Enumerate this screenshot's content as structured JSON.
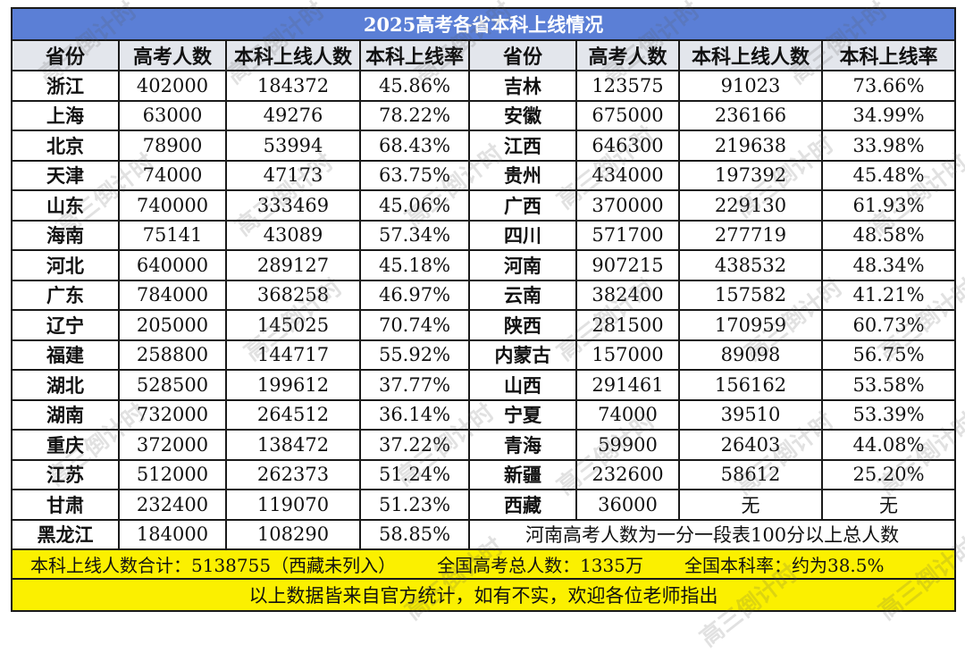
{
  "title": "2025高考各省本科上线情况",
  "headers": [
    "省份",
    "高考人数",
    "本科上线人数",
    "本科上线率",
    "省份",
    "高考人数",
    "本科上线人数",
    "本科上线率"
  ],
  "rows": [
    {
      "left": [
        "浙江",
        "402000",
        "184372",
        "45.86%"
      ],
      "right": [
        "吉林",
        "123575",
        "91023",
        "73.66%"
      ]
    },
    {
      "left": [
        "上海",
        "63000",
        "49276",
        "78.22%"
      ],
      "right": [
        "安徽",
        "675000",
        "236166",
        "34.99%"
      ]
    },
    {
      "left": [
        "北京",
        "78900",
        "53994",
        "68.43%"
      ],
      "right": [
        "江西",
        "646300",
        "219638",
        "33.98%"
      ]
    },
    {
      "left": [
        "天津",
        "74000",
        "47173",
        "63.75%"
      ],
      "right": [
        "贵州",
        "434000",
        "197392",
        "45.48%"
      ]
    },
    {
      "left": [
        "山东",
        "740000",
        "333469",
        "45.06%"
      ],
      "right": [
        "广西",
        "370000",
        "229130",
        "61.93%"
      ]
    },
    {
      "left": [
        "海南",
        "75141",
        "43089",
        "57.34%"
      ],
      "right": [
        "四川",
        "571700",
        "277719",
        "48.58%"
      ]
    },
    {
      "left": [
        "河北",
        "640000",
        "289127",
        "45.18%"
      ],
      "right": [
        "河南",
        "907215",
        "438532",
        "48.34%"
      ]
    },
    {
      "left": [
        "广东",
        "784000",
        "368258",
        "46.97%"
      ],
      "right": [
        "云南",
        "382400",
        "157582",
        "41.21%"
      ]
    },
    {
      "left": [
        "辽宁",
        "205000",
        "145025",
        "70.74%"
      ],
      "right": [
        "陕西",
        "281500",
        "170959",
        "60.73%"
      ]
    },
    {
      "left": [
        "福建",
        "258800",
        "144717",
        "55.92%"
      ],
      "right": [
        "内蒙古",
        "157000",
        "89098",
        "56.75%"
      ]
    },
    {
      "left": [
        "湖北",
        "528500",
        "199612",
        "37.77%"
      ],
      "right": [
        "山西",
        "291461",
        "156162",
        "53.58%"
      ]
    },
    {
      "left": [
        "湖南",
        "732000",
        "264512",
        "36.14%"
      ],
      "right": [
        "宁夏",
        "74000",
        "39510",
        "53.39%"
      ]
    },
    {
      "left": [
        "重庆",
        "372000",
        "138472",
        "37.22%"
      ],
      "right": [
        "青海",
        "59900",
        "26403",
        "44.08%"
      ]
    },
    {
      "left": [
        "江苏",
        "512000",
        "262373",
        "51.24%"
      ],
      "right": [
        "新疆",
        "232600",
        "58612",
        "25.20%"
      ]
    },
    {
      "left": [
        "甘肃",
        "232400",
        "119070",
        "51.23%"
      ],
      "right": [
        "西藏",
        "36000",
        "无",
        "无"
      ]
    }
  ],
  "last_row": {
    "left": [
      "黑龙江",
      "184000",
      "108290",
      "58.85%"
    ],
    "note": "河南高考人数为一分一段表100分以上总人数"
  },
  "footer": {
    "total_admitted": "本科上线人数合计：5138755（西藏未列入）",
    "total_examinees": "全国高考总人数：1335万",
    "national_rate": "全国本科率：约为38.5%",
    "disclaimer": "以上数据皆来自官方统计，如有不实，欢迎各位老师指出"
  },
  "watermark": "高三倒计时",
  "colors": {
    "title_bg": "#5b7fd6",
    "header_bg": "#e3e6ec",
    "footer_bg": "#fbf000"
  }
}
